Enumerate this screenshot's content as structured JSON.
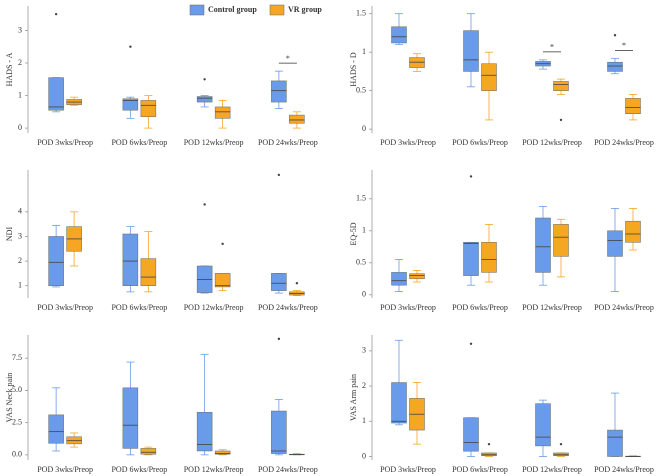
{
  "chart_data": [
    {
      "type": "box",
      "ylabel": "HADS - A",
      "categories": [
        "POD 3wks/Preop",
        "POD 6wks/Preop",
        "POD 12wks/Preop",
        "POD 24wks/Preop"
      ],
      "ylim": [
        -0.15,
        3.75
      ],
      "yticks": [
        0,
        1,
        2,
        3
      ],
      "series": [
        {
          "name": "Control group",
          "color": "#6a9be8",
          "values": [
            {
              "min": 0.5,
              "q1": 0.55,
              "median": 0.65,
              "q3": 1.55,
              "max": 1.55,
              "outliers": [
                3.5
              ]
            },
            {
              "min": 0.3,
              "q1": 0.55,
              "median": 0.85,
              "q3": 0.9,
              "max": 0.95,
              "outliers": [
                2.5
              ]
            },
            {
              "min": 0.65,
              "q1": 0.8,
              "median": 0.92,
              "q3": 0.97,
              "max": 1.0,
              "outliers": [
                1.5
              ]
            },
            {
              "min": 0.6,
              "q1": 0.8,
              "median": 1.15,
              "q3": 1.45,
              "max": 1.75,
              "outliers": []
            }
          ]
        },
        {
          "name": "VR group",
          "color": "#f5a623",
          "values": [
            {
              "min": 0.7,
              "q1": 0.72,
              "median": 0.8,
              "q3": 0.88,
              "max": 0.95,
              "outliers": []
            },
            {
              "min": 0,
              "q1": 0.35,
              "median": 0.7,
              "q3": 0.85,
              "max": 1.0,
              "outliers": []
            },
            {
              "min": 0,
              "q1": 0.3,
              "median": 0.5,
              "q3": 0.65,
              "max": 0.85,
              "outliers": []
            },
            {
              "min": 0,
              "q1": 0.15,
              "median": 0.25,
              "q3": 0.4,
              "max": 0.5,
              "outliers": []
            }
          ]
        }
      ],
      "significance": [
        {
          "label": "*",
          "category": "POD 24wks/Preop"
        }
      ]
    },
    {
      "type": "box",
      "ylabel": "HADS - D",
      "categories": [
        "POD 3wks/Preop",
        "POD 6wks/Preop",
        "POD 12wks/Preop",
        "POD 24wks/Preop"
      ],
      "ylim": [
        -0.05,
        1.6
      ],
      "yticks": [
        0,
        0.5,
        1,
        1.5
      ],
      "series": [
        {
          "color": "#6a9be8",
          "values": [
            {
              "min": 1.1,
              "q1": 1.12,
              "median": 1.2,
              "q3": 1.33,
              "max": 1.5,
              "outliers": []
            },
            {
              "min": 0.55,
              "q1": 0.75,
              "median": 0.9,
              "q3": 1.28,
              "max": 1.5,
              "outliers": []
            },
            {
              "min": 0.78,
              "q1": 0.82,
              "median": 0.85,
              "q3": 0.88,
              "max": 0.9,
              "outliers": []
            },
            {
              "min": 0.72,
              "q1": 0.75,
              "median": 0.82,
              "q3": 0.87,
              "max": 0.92,
              "outliers": [
                1.22
              ]
            }
          ]
        },
        {
          "color": "#f5a623",
          "values": [
            {
              "min": 0.75,
              "q1": 0.8,
              "median": 0.87,
              "q3": 0.93,
              "max": 0.98,
              "outliers": []
            },
            {
              "min": 0.12,
              "q1": 0.5,
              "median": 0.7,
              "q3": 0.85,
              "max": 1.0,
              "outliers": []
            },
            {
              "min": 0.45,
              "q1": 0.5,
              "median": 0.58,
              "q3": 0.62,
              "max": 0.65,
              "outliers": [
                0.12
              ]
            },
            {
              "min": 0.12,
              "q1": 0.2,
              "median": 0.28,
              "q3": 0.4,
              "max": 0.45,
              "outliers": []
            }
          ]
        }
      ],
      "significance": [
        {
          "label": "*",
          "category": "POD 12wks/Preop"
        },
        {
          "label": "*",
          "category": "POD 24wks/Preop"
        }
      ]
    },
    {
      "type": "box",
      "ylabel": "NDI",
      "categories": [
        "POD 3wks/Preop",
        "POD 6wks/Preop",
        "POD 12wks/Preop",
        "POD 24wks/Preop"
      ],
      "ylim": [
        0.5,
        5.7
      ],
      "yticks": [
        1,
        2,
        3,
        4
      ],
      "series": [
        {
          "color": "#6a9be8",
          "values": [
            {
              "min": 0.95,
              "q1": 1.0,
              "median": 1.95,
              "q3": 3.0,
              "max": 3.45,
              "outliers": []
            },
            {
              "min": 0.75,
              "q1": 1.0,
              "median": 2.0,
              "q3": 3.1,
              "max": 3.4,
              "outliers": []
            },
            {
              "min": 0.7,
              "q1": 0.72,
              "median": 1.25,
              "q3": 1.8,
              "max": 1.8,
              "outliers": [
                4.3
              ]
            },
            {
              "min": 0.7,
              "q1": 0.8,
              "median": 1.1,
              "q3": 1.5,
              "max": 1.5,
              "outliers": [
                5.5
              ]
            }
          ]
        },
        {
          "color": "#f5a623",
          "values": [
            {
              "min": 1.8,
              "q1": 2.4,
              "median": 2.9,
              "q3": 3.4,
              "max": 4.0,
              "outliers": []
            },
            {
              "min": 0.75,
              "q1": 1.0,
              "median": 1.35,
              "q3": 2.1,
              "max": 3.2,
              "outliers": []
            },
            {
              "min": 0.8,
              "q1": 0.95,
              "median": 1.0,
              "q3": 1.5,
              "max": 1.5,
              "outliers": [
                2.7
              ]
            },
            {
              "min": 0.6,
              "q1": 0.62,
              "median": 0.68,
              "q3": 0.75,
              "max": 0.8,
              "outliers": [
                1.1
              ]
            }
          ]
        }
      ],
      "significance": []
    },
    {
      "type": "box",
      "ylabel": "EQ-5D",
      "categories": [
        "POD 3wks/Preop",
        "POD 6wks/Preop",
        "POD 12wks/Preop",
        "POD 24wks/Preop"
      ],
      "ylim": [
        -0.05,
        1.95
      ],
      "yticks": [
        0,
        0.5,
        1,
        1.5
      ],
      "series": [
        {
          "color": "#6a9be8",
          "values": [
            {
              "min": 0.05,
              "q1": 0.15,
              "median": 0.22,
              "q3": 0.35,
              "max": 0.55,
              "outliers": []
            },
            {
              "min": 0.15,
              "q1": 0.3,
              "median": 0.8,
              "q3": 0.82,
              "max": 0.82,
              "outliers": [
                1.85
              ]
            },
            {
              "min": 0.15,
              "q1": 0.35,
              "median": 0.75,
              "q3": 1.2,
              "max": 1.38,
              "outliers": []
            },
            {
              "min": 0.05,
              "q1": 0.6,
              "median": 0.85,
              "q3": 1.0,
              "max": 1.35,
              "outliers": []
            }
          ]
        },
        {
          "color": "#f5a623",
          "values": [
            {
              "min": 0.2,
              "q1": 0.25,
              "median": 0.3,
              "q3": 0.33,
              "max": 0.38,
              "outliers": []
            },
            {
              "min": 0.2,
              "q1": 0.35,
              "median": 0.55,
              "q3": 0.82,
              "max": 1.1,
              "outliers": []
            },
            {
              "min": 0.28,
              "q1": 0.6,
              "median": 0.9,
              "q3": 1.1,
              "max": 1.18,
              "outliers": []
            },
            {
              "min": 0.7,
              "q1": 0.82,
              "median": 0.95,
              "q3": 1.15,
              "max": 1.35,
              "outliers": []
            }
          ]
        }
      ],
      "significance": []
    },
    {
      "type": "box",
      "ylabel": "VAS Neck pain",
      "categories": [
        "POD 3wks/Preop",
        "POD 6wks/Preop",
        "POD 12wks/Preop",
        "POD 24wks/Preop"
      ],
      "ylim": [
        -0.4,
        9.3
      ],
      "yticks": [
        {
          "value": 0,
          "label": "0.0"
        },
        2.5,
        {
          "value": 5,
          "label": "5.0"
        },
        7.5
      ],
      "series": [
        {
          "color": "#6a9be8",
          "values": [
            {
              "min": 0.3,
              "q1": 0.9,
              "median": 1.8,
              "q3": 3.1,
              "max": 5.2,
              "outliers": []
            },
            {
              "min": 0,
              "q1": 0.5,
              "median": 2.3,
              "q3": 5.2,
              "max": 7.2,
              "outliers": []
            },
            {
              "min": 0,
              "q1": 0.3,
              "median": 0.8,
              "q3": 3.3,
              "max": 7.8,
              "outliers": []
            },
            {
              "min": 0,
              "q1": 0.1,
              "median": 0.3,
              "q3": 3.4,
              "max": 4.3,
              "outliers": [
                9.0
              ]
            }
          ]
        },
        {
          "color": "#f5a623",
          "values": [
            {
              "min": 0.6,
              "q1": 0.85,
              "median": 1.1,
              "q3": 1.4,
              "max": 1.7,
              "outliers": []
            },
            {
              "min": 0,
              "q1": 0.05,
              "median": 0.2,
              "q3": 0.5,
              "max": 0.6,
              "outliers": []
            },
            {
              "min": 0,
              "q1": 0.05,
              "median": 0.1,
              "q3": 0.3,
              "max": 0.4,
              "outliers": []
            },
            {
              "min": 0,
              "q1": 0,
              "median": 0.02,
              "q3": 0.05,
              "max": 0.1,
              "outliers": []
            }
          ]
        }
      ],
      "significance": []
    },
    {
      "type": "box",
      "ylabel": "VAS Arm pain",
      "categories": [
        "POD 3wks/Preop",
        "POD 6wks/Preop",
        "POD 12wks/Preop",
        "POD 24wks/Preop"
      ],
      "ylim": [
        -0.1,
        3.45
      ],
      "yticks": [
        0,
        1,
        2,
        3
      ],
      "series": [
        {
          "color": "#6a9be8",
          "values": [
            {
              "min": 0.9,
              "q1": 0.95,
              "median": 1.0,
              "q3": 2.1,
              "max": 3.3,
              "outliers": []
            },
            {
              "min": 0,
              "q1": 0.15,
              "median": 0.4,
              "q3": 1.1,
              "max": 1.1,
              "outliers": [
                3.2
              ]
            },
            {
              "min": 0,
              "q1": 0.3,
              "median": 0.55,
              "q3": 1.5,
              "max": 1.6,
              "outliers": []
            },
            {
              "min": 0,
              "q1": 0,
              "median": 0.55,
              "q3": 0.75,
              "max": 1.8,
              "outliers": []
            }
          ]
        },
        {
          "color": "#f5a623",
          "values": [
            {
              "min": 0.35,
              "q1": 0.75,
              "median": 1.2,
              "q3": 1.65,
              "max": 2.1,
              "outliers": []
            },
            {
              "min": 0,
              "q1": 0.02,
              "median": 0.05,
              "q3": 0.1,
              "max": 0.1,
              "outliers": [
                0.35
              ]
            },
            {
              "min": 0,
              "q1": 0.02,
              "median": 0.05,
              "q3": 0.1,
              "max": 0.1,
              "outliers": [
                0.35
              ]
            },
            {
              "min": 0,
              "q1": 0,
              "median": 0,
              "q3": 0.01,
              "max": 0.02,
              "outliers": []
            }
          ]
        }
      ],
      "significance": []
    }
  ]
}
